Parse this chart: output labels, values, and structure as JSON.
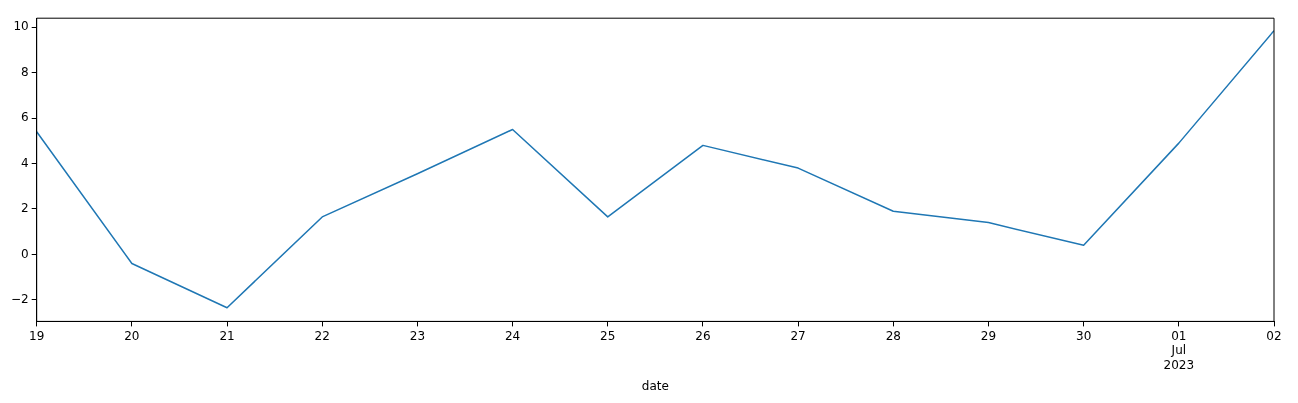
{
  "chart_data": {
    "type": "line",
    "xlabel": "date",
    "x": [
      "2023-06-19",
      "2023-06-20",
      "2023-06-21",
      "2023-06-22",
      "2023-06-23",
      "2023-06-24",
      "2023-06-25",
      "2023-06-26",
      "2023-06-27",
      "2023-06-28",
      "2023-06-29",
      "2023-06-30",
      "2023-07-01",
      "2023-07-02"
    ],
    "series": [
      {
        "color": "#1f77b4",
        "values": [
          5.4,
          -0.4,
          -2.35,
          1.65,
          3.55,
          5.5,
          1.65,
          4.8,
          3.8,
          1.9,
          1.4,
          0.4,
          4.9,
          9.85
        ]
      }
    ],
    "xlim": [
      "2023-06-19",
      "2023-07-02"
    ],
    "xticks": [
      {
        "value": "2023-06-19",
        "label": "19"
      },
      {
        "value": "2023-06-20",
        "label": "20"
      },
      {
        "value": "2023-06-21",
        "label": "21"
      },
      {
        "value": "2023-06-22",
        "label": "22"
      },
      {
        "value": "2023-06-23",
        "label": "23"
      },
      {
        "value": "2023-06-24",
        "label": "24"
      },
      {
        "value": "2023-06-25",
        "label": "25"
      },
      {
        "value": "2023-06-26",
        "label": "26"
      },
      {
        "value": "2023-06-27",
        "label": "27"
      },
      {
        "value": "2023-06-28",
        "label": "28"
      },
      {
        "value": "2023-06-29",
        "label": "29"
      },
      {
        "value": "2023-06-30",
        "label": "30"
      },
      {
        "value": "2023-07-01",
        "label": "01\nJul\n2023"
      },
      {
        "value": "2023-07-02",
        "label": "02"
      }
    ],
    "ylim": [
      -2.95,
      10.4
    ],
    "yticks": [
      -2,
      0,
      2,
      4,
      6,
      8,
      10
    ],
    "grid": false,
    "legend": false,
    "marker": "none",
    "line_style": "solid"
  }
}
